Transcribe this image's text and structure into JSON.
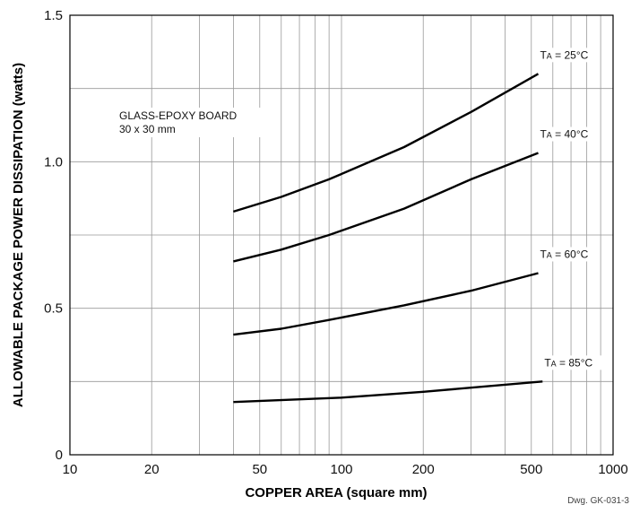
{
  "chart_data": {
    "type": "line",
    "xlabel": "COPPER AREA (square mm)",
    "ylabel": "ALLOWABLE PACKAGE POWER DISSIPATION (watts)",
    "x_scale": "log",
    "xlim": [
      10,
      1000
    ],
    "ylim": [
      0,
      1.5
    ],
    "grid": true,
    "x_ticks": [
      10,
      20,
      50,
      100,
      200,
      500,
      1000
    ],
    "x_tick_labels": [
      "10",
      "20",
      "50",
      "100",
      "200",
      "500",
      "1000"
    ],
    "y_ticks": [
      0,
      0.5,
      1.0,
      1.5
    ],
    "y_tick_labels": [
      "0",
      "0.5",
      "1.0",
      "1.5"
    ],
    "annotation": {
      "line1": "GLASS-EPOXY BOARD",
      "line2": "30 x 30 mm"
    },
    "footnote": "Dwg. GK-031-3",
    "series": [
      {
        "label_prefix": "T",
        "label_sub": "A",
        "label_suffix": " = 25°C",
        "x": [
          40,
          60,
          90,
          170,
          300,
          530
        ],
        "y": [
          0.83,
          0.88,
          0.94,
          1.05,
          1.17,
          1.3
        ]
      },
      {
        "label_prefix": "T",
        "label_sub": "A",
        "label_suffix": " = 40°C",
        "x": [
          40,
          60,
          90,
          170,
          300,
          530
        ],
        "y": [
          0.66,
          0.7,
          0.75,
          0.84,
          0.94,
          1.03
        ]
      },
      {
        "label_prefix": "T",
        "label_sub": "A",
        "label_suffix": " = 60°C",
        "x": [
          40,
          60,
          90,
          170,
          300,
          530
        ],
        "y": [
          0.41,
          0.43,
          0.46,
          0.51,
          0.56,
          0.62
        ]
      },
      {
        "label_prefix": "T",
        "label_sub": "A",
        "label_suffix": " = 85°C",
        "x": [
          40,
          100,
          200,
          550
        ],
        "y": [
          0.18,
          0.195,
          0.215,
          0.25
        ]
      }
    ]
  }
}
